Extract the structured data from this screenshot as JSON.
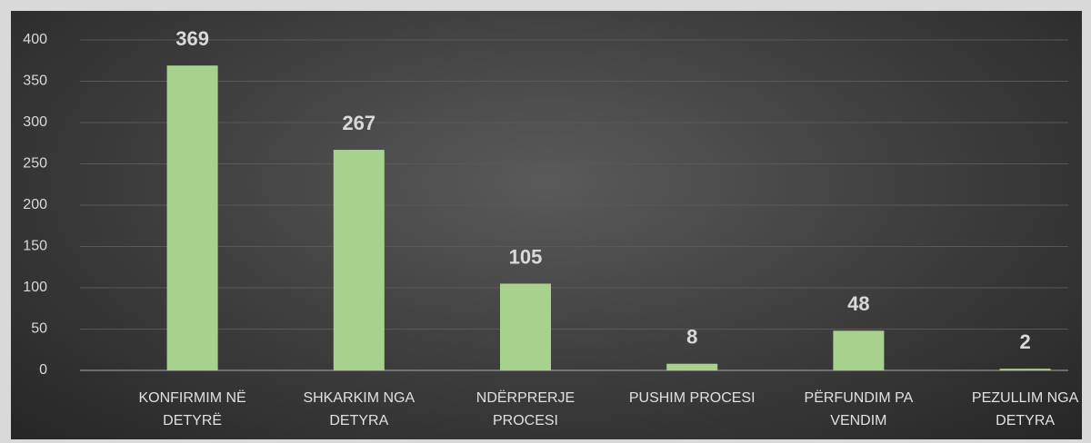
{
  "chart_data": {
    "type": "bar",
    "categories": [
      "KONFIRMIM NË DETYRË",
      "SHKARKIM NGA DETYRA",
      "NDËRPRERJE PROCESI",
      "PUSHIM PROCESI",
      "PËRFUNDIM PA VENDIM",
      "PEZULLIM NGA DETYRA"
    ],
    "values": [
      369,
      267,
      105,
      8,
      48,
      2
    ],
    "color": "#a9d18e",
    "ylim": [
      0,
      400
    ],
    "yticks": [
      0,
      50,
      100,
      150,
      200,
      250,
      300,
      350,
      400
    ],
    "grid": true
  }
}
